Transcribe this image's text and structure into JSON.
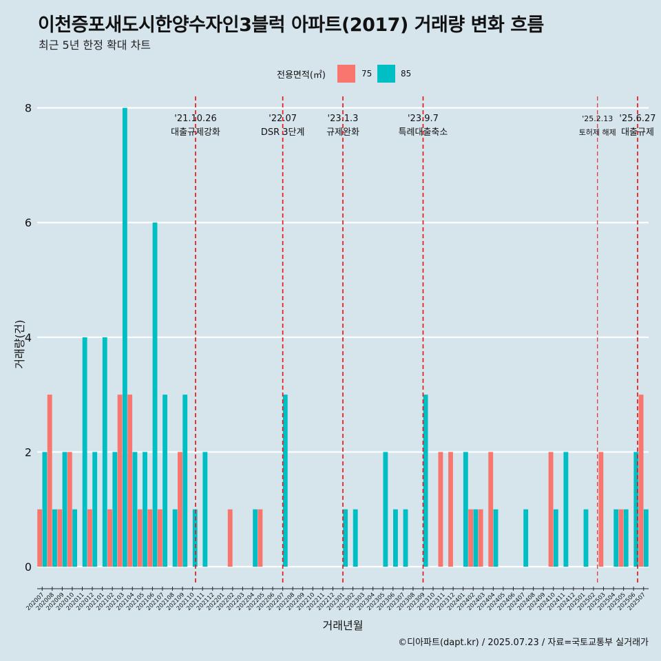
{
  "title": "이천증포새도시한양수자인3블럭 아파트(2017) 거래량 변화 흐름",
  "subtitle": "최근 5년 한정 확대 차트",
  "caption": "©디아파트(dapt.kr) / 2025.07.23 / 자료=국토교통부 실거래가",
  "legend": {
    "title": "전용면적(㎡)",
    "items": [
      {
        "label": "75",
        "color": "#f8766d"
      },
      {
        "label": "85",
        "color": "#00bfc4"
      }
    ]
  },
  "chart_data": {
    "type": "bar",
    "title": "이천증포새도시한양수자인3블럭 아파트(2017) 거래량 변화 흐름",
    "xlabel": "거래년월",
    "ylabel": "거래량(건)",
    "ylim": [
      -0.3,
      8.2
    ],
    "yticks": [
      0,
      2,
      4,
      6,
      8
    ],
    "categories": [
      "202007",
      "202008",
      "202009",
      "202010",
      "202011",
      "202012",
      "202101",
      "202102",
      "202103",
      "202104",
      "202105",
      "202106",
      "202107",
      "202108",
      "202109",
      "202110",
      "202111",
      "202112",
      "202201",
      "202202",
      "202203",
      "202204",
      "202205",
      "202206",
      "202207",
      "202208",
      "202209",
      "202210",
      "202211",
      "202212",
      "202301",
      "202302",
      "202303",
      "202304",
      "202305",
      "202306",
      "202307",
      "202308",
      "202309",
      "202310",
      "202311",
      "202312",
      "202401",
      "202402",
      "202403",
      "202404",
      "202405",
      "202406",
      "202407",
      "202408",
      "202409",
      "202410",
      "202411",
      "202412",
      "202501",
      "202502",
      "202503",
      "202504",
      "202505",
      "202506",
      "202507"
    ],
    "series": [
      {
        "name": "75",
        "color": "#f8766d",
        "values": [
          1,
          3,
          1,
          2,
          0,
          1,
          0,
          1,
          3,
          3,
          1,
          1,
          1,
          0,
          2,
          0,
          0,
          0,
          0,
          1,
          0,
          0,
          1,
          0,
          0,
          0,
          0,
          0,
          0,
          0,
          0,
          0,
          0,
          0,
          0,
          0,
          0,
          0,
          0,
          0,
          2,
          2,
          0,
          1,
          1,
          2,
          0,
          0,
          0,
          0,
          0,
          2,
          0,
          0,
          0,
          0,
          2,
          0,
          1,
          0,
          3
        ]
      },
      {
        "name": "85",
        "color": "#00bfc4",
        "values": [
          2,
          1,
          2,
          1,
          4,
          2,
          4,
          2,
          8,
          2,
          2,
          6,
          3,
          1,
          3,
          1,
          2,
          0,
          0,
          0,
          0,
          1,
          0,
          0,
          3,
          0,
          0,
          0,
          0,
          0,
          1,
          1,
          0,
          0,
          2,
          1,
          1,
          0,
          3,
          0,
          0,
          0,
          2,
          1,
          0,
          1,
          0,
          0,
          1,
          0,
          0,
          1,
          2,
          0,
          1,
          0,
          0,
          1,
          1,
          2,
          1
        ]
      }
    ],
    "events": [
      {
        "date": "'21.10.26",
        "label": "대출규제강화",
        "position": 15.3,
        "style": "dashed"
      },
      {
        "date": "'22.07",
        "label": "DSR 3단계",
        "position": 24.0,
        "style": "dashed"
      },
      {
        "date": "'23.1.3",
        "label": "규제완화",
        "position": 30.0,
        "style": "dashed"
      },
      {
        "date": "'23.9.7",
        "label": "특례대출축소",
        "position": 38.0,
        "style": "dashed"
      },
      {
        "date": "'25.2.13",
        "label": "토허제 해제",
        "position": 55.4,
        "style": "thin-dashed"
      },
      {
        "date": "'25.6.27",
        "label": "대출규제",
        "position": 59.4,
        "style": "dashed"
      }
    ]
  }
}
